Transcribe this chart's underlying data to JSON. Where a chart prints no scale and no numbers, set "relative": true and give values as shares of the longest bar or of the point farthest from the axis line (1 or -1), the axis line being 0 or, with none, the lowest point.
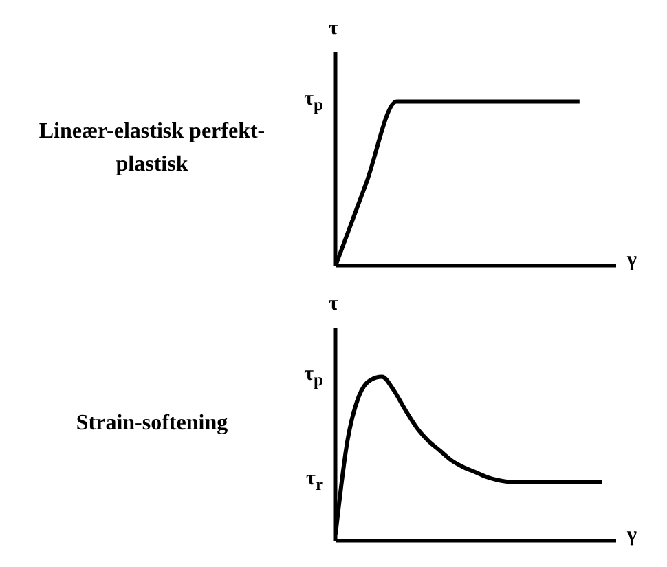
{
  "chart_data": [
    {
      "type": "line",
      "title": "Lineær-elastisk perfekt-plastisk",
      "xlabel": "γ",
      "ylabel": "τ",
      "relative": true,
      "categories": [
        null,
        null,
        null,
        null,
        null,
        null,
        null,
        null,
        null
      ],
      "annotations": [
        "τ$_{p}$"
      ],
      "series": [
        {
          "color": "#000000",
          "values": [
            0,
            0.5,
            1,
            1,
            1,
            1,
            1,
            1,
            1
          ]
        }
      ],
      "marker": "none"
    },
    {
      "type": "line",
      "title": "Strain-softening",
      "xlabel": "γ",
      "ylabel": "τ",
      "relative": true,
      "categories": [
        null,
        null,
        null,
        null,
        null,
        null,
        null,
        null,
        null,
        null,
        null,
        null,
        null,
        null,
        null,
        null,
        null,
        null,
        null,
        null,
        null,
        null,
        null,
        null
      ],
      "annotations": [
        "τ$_{p}$",
        "τ$_{r}$"
      ],
      "series": [
        {
          "color": "#000000",
          "values": [
            0.04,
            0.6,
            0.88,
            0.98,
            1,
            0.92,
            0.8,
            0.69,
            0.61,
            0.55,
            0.49,
            0.45,
            0.42,
            0.39,
            0.37,
            0.36,
            0.36,
            0.36,
            0.36,
            0.36,
            0.36,
            0.36,
            0.36,
            0.36
          ]
        }
      ],
      "marker": "none"
    }
  ]
}
